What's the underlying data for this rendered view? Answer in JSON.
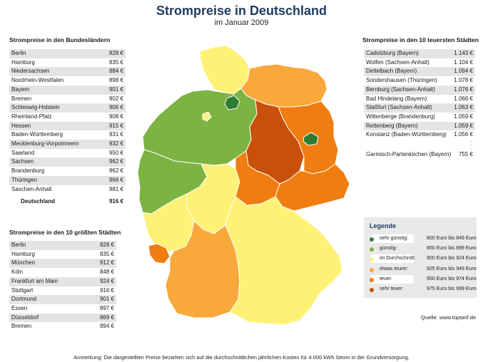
{
  "header": {
    "title": "Strompreise in Deutschland",
    "subtitle": "im Januar 2009"
  },
  "states_section": {
    "title": "Strompreise in den Bundesländern",
    "rows": [
      {
        "name": "Berlin",
        "price": "828 €"
      },
      {
        "name": "Hamburg",
        "price": "835 €"
      },
      {
        "name": "Niedersachsen",
        "price": "884 €"
      },
      {
        "name": "Nordrhein-Westfalen",
        "price": "898 €"
      },
      {
        "name": "Bayern",
        "price": "901 €"
      },
      {
        "name": "Bremen",
        "price": "902 €"
      },
      {
        "name": "Schleswig-Holstein",
        "price": "906 €"
      },
      {
        "name": "Rheinland-Pfalz",
        "price": "908 €"
      },
      {
        "name": "Hessen",
        "price": "915 €"
      },
      {
        "name": "Baden-Württemberg",
        "price": "931 €"
      },
      {
        "name": "Mecklenburg-Vorpommern",
        "price": "932 €"
      },
      {
        "name": "Saarland",
        "price": "950 €"
      },
      {
        "name": "Sachsen",
        "price": "962 €"
      },
      {
        "name": "Brandenburg",
        "price": "962 €"
      },
      {
        "name": "Thüringen",
        "price": "968 €"
      },
      {
        "name": "Saschen-Anhalt",
        "price": "981 €"
      }
    ],
    "total_label": "Deutschland",
    "total_price": "916 €"
  },
  "cities_section": {
    "title": "Strompreise in den 10 größten Städten",
    "rows": [
      {
        "name": "Berlin",
        "price": "828 €"
      },
      {
        "name": "Hamburg",
        "price": "835 €"
      },
      {
        "name": "München",
        "price": "912 €"
      },
      {
        "name": "Köln",
        "price": "848 €"
      },
      {
        "name": "Frankfurt am Main",
        "price": "924 €"
      },
      {
        "name": "Stuttgart",
        "price": "916 €"
      },
      {
        "name": "Dortmund",
        "price": "901 €"
      },
      {
        "name": "Essen",
        "price": "897 €"
      },
      {
        "name": "Düsseldorf",
        "price": "869 €"
      },
      {
        "name": "Bremen",
        "price": "894 €"
      }
    ]
  },
  "expensive_section": {
    "title": "Strompreise in den 10 teuersten Städten",
    "rows": [
      {
        "name": "Cadolzburg (Bayern)",
        "price": "1.143 €"
      },
      {
        "name": "Wolfen (Sachsen-Anhalt)",
        "price": "1.104 €"
      },
      {
        "name": "Dettelbach (Bayern)",
        "price": "1.094 €"
      },
      {
        "name": "Sondershausen (Thüringen)",
        "price": "1.078 €"
      },
      {
        "name": "Bernburg (Sachsen-Anhalt)",
        "price": "1.076 €"
      },
      {
        "name": "Bad Hindelang (Bayern)",
        "price": "1.066 €"
      },
      {
        "name": "Staßfurt (Sachsen-Anhalt)",
        "price": "1.063 €"
      },
      {
        "name": "Wittenberge (Brandenburg)",
        "price": "1.059 €"
      },
      {
        "name": "Rettenberg (Bayern)",
        "price": "1.059 €"
      },
      {
        "name": "Konstanz (Baden-Württemberg)",
        "price": "1.056 €"
      }
    ],
    "cheapest_label": "Garmisch-Partenkirchen (Bayern)",
    "cheapest_price": "755 €"
  },
  "legend": {
    "title": "Legende",
    "items": [
      {
        "label": "sehr günstig:",
        "range": "800 Euro bis 849 Euro",
        "color": "#2e7d32"
      },
      {
        "label": "günstig:",
        "range": "850 Euro bis 899 Euro",
        "color": "#7cb342"
      },
      {
        "label": "im Durchschnitt:",
        "range": "900 Euro bis 924 Euro",
        "color": "#fff176"
      },
      {
        "label": "etwas teurer:",
        "range": "925 Euro bis 949 Euro",
        "color": "#f9a83c"
      },
      {
        "label": "teuer:",
        "range": "950 Euro bis 974 Euro",
        "color": "#ef7d0f"
      },
      {
        "label": "sehr teuer:",
        "range": "975 Euro bis 999 Euro",
        "color": "#c8500a"
      }
    ]
  },
  "source": "Quelle: www.toptarif.de",
  "note": "Anmerkung: Die dargestellten Preise beziehen sich auf die durchschnittlichen jährlichen Kosten für 4.000 kWh Strom in der Grundversorgung."
}
